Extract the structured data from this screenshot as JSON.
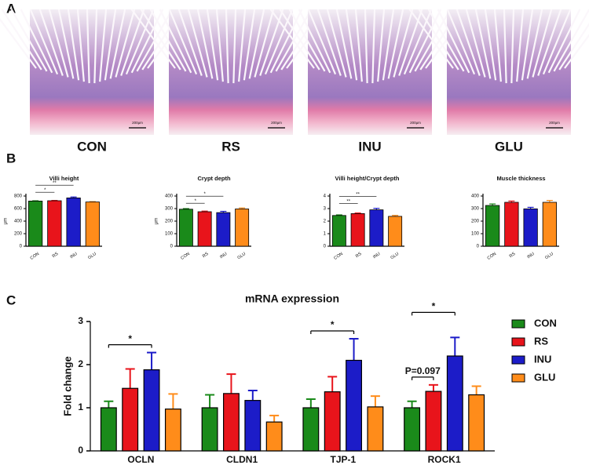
{
  "panel_labels": [
    "A",
    "B",
    "C"
  ],
  "images": [
    {
      "caption": "CON",
      "scale": "200μm"
    },
    {
      "caption": "RS",
      "scale": "200μm"
    },
    {
      "caption": "INU",
      "scale": "200μm"
    },
    {
      "caption": "GLU",
      "scale": "200μm"
    }
  ],
  "chart_data": [
    {
      "type": "bar",
      "title": "Villi height",
      "y_label": "μm",
      "categories": [
        "CON",
        "RS",
        "INU",
        "GLU"
      ],
      "values": [
        720,
        725,
        770,
        705
      ],
      "errors": [
        5,
        5,
        15,
        6
      ],
      "colors": [
        "#1a8a1a",
        "#e8141b",
        "#1c1cc8",
        "#ff8c1a"
      ],
      "ylim": [
        0,
        800
      ],
      "yticks": [
        0,
        200,
        400,
        600,
        800
      ],
      "annotations": [
        {
          "text": "*",
          "between": [
            "CON",
            "RS"
          ]
        },
        {
          "text": "**",
          "between": [
            "CON",
            "INU"
          ]
        }
      ]
    },
    {
      "type": "bar",
      "title": "Crypt depth",
      "y_label": "μm",
      "categories": [
        "CON",
        "RS",
        "INU",
        "GLU"
      ],
      "values": [
        295,
        275,
        268,
        297
      ],
      "errors": [
        5,
        5,
        10,
        8
      ],
      "colors": [
        "#1a8a1a",
        "#e8141b",
        "#1c1cc8",
        "#ff8c1a"
      ],
      "ylim": [
        0,
        400
      ],
      "yticks": [
        0,
        100,
        200,
        300,
        400
      ],
      "annotations": [
        {
          "text": "*",
          "between": [
            "CON",
            "RS"
          ]
        },
        {
          "text": "*",
          "between": [
            "CON",
            "INU"
          ]
        }
      ]
    },
    {
      "type": "bar",
      "title": "Villi height/Crypt depth",
      "categories": [
        "CON",
        "RS",
        "INU",
        "GLU"
      ],
      "values": [
        2.45,
        2.6,
        2.9,
        2.38
      ],
      "errors": [
        0.05,
        0.05,
        0.12,
        0.08
      ],
      "colors": [
        "#1a8a1a",
        "#e8141b",
        "#1c1cc8",
        "#ff8c1a"
      ],
      "ylim": [
        0,
        4
      ],
      "yticks": [
        0,
        1,
        2,
        3,
        4
      ],
      "annotations": [
        {
          "text": "**",
          "between": [
            "CON",
            "RS"
          ]
        },
        {
          "text": "**",
          "between": [
            "CON",
            "INU"
          ]
        }
      ]
    },
    {
      "type": "bar",
      "title": "Muscle thickness",
      "categories": [
        "CON",
        "RS",
        "INU",
        "GLU"
      ],
      "values": [
        325,
        350,
        298,
        350
      ],
      "errors": [
        12,
        10,
        12,
        15
      ],
      "colors": [
        "#1a8a1a",
        "#e8141b",
        "#1c1cc8",
        "#ff8c1a"
      ],
      "ylim": [
        0,
        400
      ],
      "yticks": [
        0,
        100,
        200,
        300,
        400
      ],
      "annotations": []
    },
    {
      "type": "grouped-bar",
      "title": "mRNA expression",
      "y_label": "Fold change",
      "categories": [
        "OCLN",
        "CLDN1",
        "TJP-1",
        "ROCK1"
      ],
      "series": [
        {
          "name": "CON",
          "color": "#1a8a1a",
          "values": [
            1.0,
            1.0,
            1.0,
            1.0
          ],
          "errors": [
            0.15,
            0.3,
            0.2,
            0.15
          ]
        },
        {
          "name": "RS",
          "color": "#e8141b",
          "values": [
            1.45,
            1.33,
            1.37,
            1.38
          ],
          "errors": [
            0.45,
            0.45,
            0.35,
            0.15
          ]
        },
        {
          "name": "INU",
          "color": "#1c1cc8",
          "values": [
            1.88,
            1.17,
            2.1,
            2.2
          ],
          "errors": [
            0.4,
            0.23,
            0.5,
            0.43
          ]
        },
        {
          "name": "GLU",
          "color": "#ff8c1a",
          "values": [
            0.97,
            0.67,
            1.02,
            1.3
          ],
          "errors": [
            0.35,
            0.15,
            0.25,
            0.2
          ]
        }
      ],
      "ylim": [
        0,
        3
      ],
      "yticks": [
        0,
        1,
        2,
        3
      ],
      "annotations": [
        {
          "category": "OCLN",
          "text": "*",
          "between": [
            "CON",
            "INU"
          ]
        },
        {
          "category": "TJP-1",
          "text": "*",
          "between": [
            "CON",
            "INU"
          ]
        },
        {
          "category": "ROCK1",
          "text": "P=0.097",
          "between": [
            "CON",
            "RS"
          ]
        },
        {
          "category": "ROCK1",
          "text": "*",
          "between": [
            "CON",
            "INU"
          ]
        }
      ]
    }
  ]
}
